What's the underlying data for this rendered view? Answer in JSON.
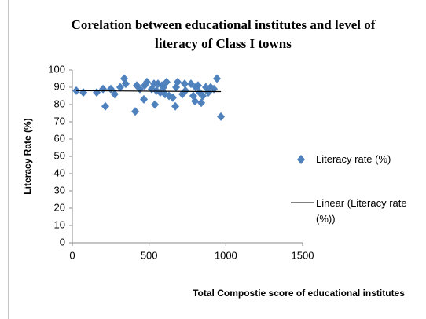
{
  "chart_data": {
    "type": "scatter",
    "title": "Corelation between educational institutes and level of literacy of Class I towns",
    "x_label": "Total  Compostie score of educational institutes",
    "y_label": "Literacy Rate (%)",
    "xlim": [
      0,
      1500
    ],
    "xticks": [
      0,
      500,
      1000,
      1500
    ],
    "ylim": [
      0,
      100
    ],
    "yticks": [
      0,
      10,
      20,
      30,
      40,
      50,
      60,
      70,
      80,
      90,
      100
    ],
    "grid": false,
    "series": [
      {
        "name": "Literacy rate (%)",
        "color": "#4f81bd",
        "x": [
          26,
          72,
          159,
          200,
          215,
          251,
          276,
          312,
          338,
          348,
          410,
          420,
          440,
          466,
          471,
          486,
          517,
          538,
          532,
          548,
          558,
          573,
          584,
          594,
          604,
          614,
          630,
          655,
          671,
          676,
          686,
          717,
          732,
          737,
          773,
          788,
          799,
          804,
          819,
          829,
          840,
          850,
          870,
          886,
          901,
          922,
          942,
          968
        ],
        "values": [
          88,
          87,
          87,
          89,
          79,
          89,
          86,
          90,
          95,
          92,
          76,
          91,
          89,
          83,
          91,
          93,
          89,
          80,
          92,
          88,
          92,
          87,
          91,
          90,
          86,
          93,
          85,
          84,
          79,
          90,
          93,
          86,
          92,
          88,
          92,
          85,
          82,
          90,
          91,
          87,
          81,
          85,
          90,
          87,
          90,
          89,
          95,
          73
        ]
      }
    ],
    "trendline": {
      "name": "Linear (Literacy rate (%))",
      "color": "#000000",
      "x": [
        26,
        968
      ],
      "values": [
        88,
        87.5
      ]
    }
  }
}
